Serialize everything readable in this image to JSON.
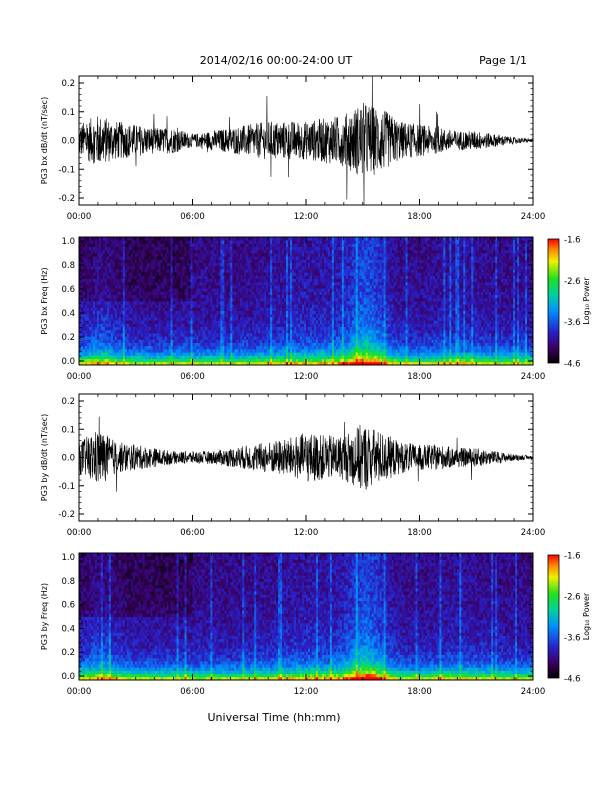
{
  "header": {
    "date_title": "2014/02/16  00:00-24:00 UT",
    "page_label": "Page 1/1"
  },
  "footer": {
    "xlabel": "Universal Time (hh:mm)"
  },
  "chart_data": [
    {
      "type": "line",
      "panel": "bx-dbdt",
      "ylabel": "PG3 bx dB/dt (nT/sec)",
      "x_ticks": [
        "00:00",
        "06:00",
        "12:00",
        "18:00",
        "24:00"
      ],
      "y_ticks": [
        "0.2",
        "0.1",
        "0.0",
        "-0.1",
        "-0.2"
      ],
      "xlim_hours": [
        0,
        24
      ],
      "ylim": [
        -0.2,
        0.2
      ],
      "envelope": {
        "hours": [
          0,
          1,
          2,
          3,
          4,
          5,
          6,
          7,
          8,
          9,
          10,
          11,
          12,
          13,
          14,
          15,
          16,
          17,
          18,
          19,
          20,
          21,
          22,
          23,
          24
        ],
        "amplitude": [
          0.05,
          0.08,
          0.06,
          0.05,
          0.04,
          0.04,
          0.02,
          0.03,
          0.04,
          0.05,
          0.06,
          0.06,
          0.06,
          0.07,
          0.08,
          0.12,
          0.1,
          0.06,
          0.05,
          0.04,
          0.03,
          0.03,
          0.02,
          0.01,
          0.005
        ]
      },
      "line_color": "#000000"
    },
    {
      "type": "heatmap",
      "panel": "bx-spectrogram",
      "ylabel": "PG3 bx Freq (Hz)",
      "x_ticks": [
        "00:00",
        "06:00",
        "12:00",
        "18:00",
        "24:00"
      ],
      "y_ticks": [
        "1.0",
        "0.8",
        "0.6",
        "0.4",
        "0.2",
        "0.0"
      ],
      "ylim": [
        0,
        1.0
      ],
      "colorbar": {
        "label": "Log₁₀ Power",
        "ticks": [
          "-1.6",
          "-2.6",
          "-3.6",
          "-4.6"
        ],
        "range": [
          -4.6,
          -1.6
        ]
      }
    },
    {
      "type": "line",
      "panel": "by-dbdt",
      "ylabel": "PG3 by dB/dt (nT/sec)",
      "x_ticks": [
        "00:00",
        "06:00",
        "12:00",
        "18:00",
        "24:00"
      ],
      "y_ticks": [
        "0.2",
        "0.1",
        "0.0",
        "-0.1",
        "-0.2"
      ],
      "xlim_hours": [
        0,
        24
      ],
      "ylim": [
        -0.2,
        0.2
      ],
      "envelope": {
        "hours": [
          0,
          1,
          2,
          3,
          4,
          5,
          6,
          7,
          8,
          9,
          10,
          11,
          12,
          13,
          14,
          15,
          16,
          17,
          18,
          19,
          20,
          21,
          22,
          23,
          24
        ],
        "amplitude": [
          0.05,
          0.09,
          0.05,
          0.04,
          0.03,
          0.02,
          0.02,
          0.02,
          0.03,
          0.04,
          0.05,
          0.06,
          0.08,
          0.07,
          0.07,
          0.11,
          0.08,
          0.05,
          0.04,
          0.04,
          0.03,
          0.03,
          0.02,
          0.01,
          0.005
        ]
      },
      "line_color": "#000000"
    },
    {
      "type": "heatmap",
      "panel": "by-spectrogram",
      "ylabel": "PG3 by Freq (Hz)",
      "x_ticks": [
        "00:00",
        "06:00",
        "12:00",
        "18:00",
        "24:00"
      ],
      "y_ticks": [
        "1.0",
        "0.8",
        "0.6",
        "0.4",
        "0.2",
        "0.0"
      ],
      "ylim": [
        0,
        1.0
      ],
      "colorbar": {
        "label": "Log₁₀ Power",
        "ticks": [
          "-1.6",
          "-2.6",
          "-3.6",
          "-4.6"
        ],
        "range": [
          -4.6,
          -1.6
        ]
      }
    }
  ]
}
